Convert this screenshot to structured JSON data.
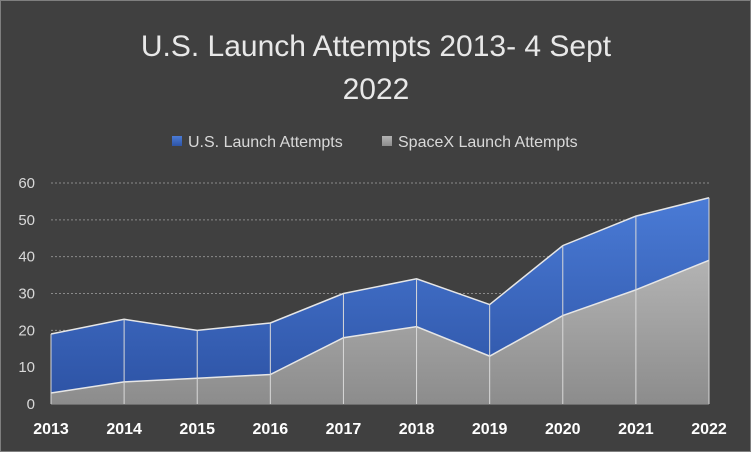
{
  "chart_data": {
    "type": "area",
    "title_lines": [
      "U.S. Launch Attempts 2013- 4 Sept",
      "2022"
    ],
    "categories": [
      "2013",
      "2014",
      "2015",
      "2016",
      "2017",
      "2018",
      "2019",
      "2020",
      "2021",
      "2022"
    ],
    "series": [
      {
        "name": "U.S. Launch Attempts",
        "values": [
          19,
          23,
          20,
          22,
          30,
          34,
          27,
          43,
          51,
          56
        ],
        "color": "#4472c4"
      },
      {
        "name": "SpaceX Launch Attempts",
        "values": [
          3,
          6,
          7,
          8,
          18,
          21,
          13,
          24,
          31,
          39
        ],
        "color": "#a6a6a6"
      }
    ],
    "ylim": [
      0,
      60
    ],
    "yticks": [
      0,
      10,
      20,
      30,
      40,
      50,
      60
    ],
    "grid": true,
    "legend_position": "top"
  }
}
